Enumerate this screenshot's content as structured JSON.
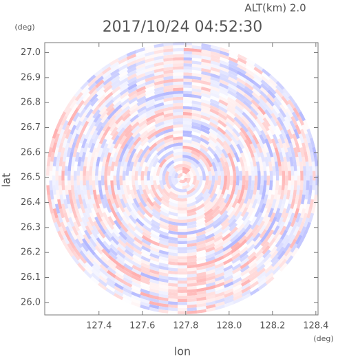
{
  "chart_data": {
    "type": "heatmap",
    "title": "2017/10/24 04:52:30",
    "subtitle": "ALT(km) 2.0",
    "x_label": "lon",
    "y_label": "lat",
    "x_unit": "(deg)",
    "y_unit": "(deg)",
    "xlim": [
      127.15,
      128.41
    ],
    "ylim": [
      25.95,
      27.04
    ],
    "xticks": [
      127.4,
      127.6,
      127.8,
      {
        "value": 128,
        "label": "128.0"
      },
      128.2,
      128.4
    ],
    "yticks": [
      {
        "value": 26,
        "label": "26.0"
      },
      26.1,
      26.2,
      26.3,
      26.4,
      26.5,
      26.6,
      26.7,
      26.8,
      26.9,
      {
        "value": 27,
        "label": "27.0"
      }
    ]
  }
}
